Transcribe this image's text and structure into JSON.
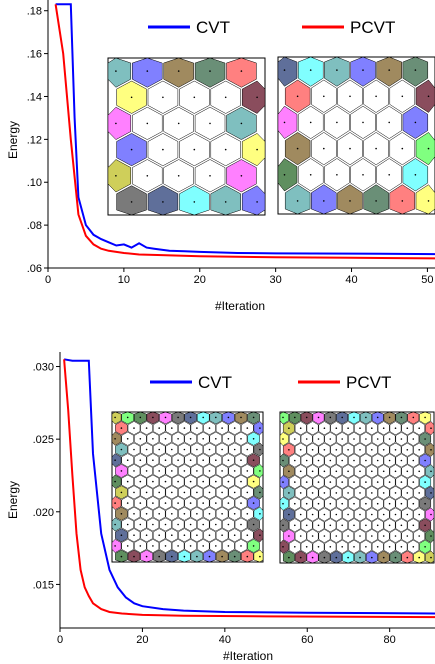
{
  "chart_data": [
    {
      "type": "line",
      "xlabel": "#Iteration",
      "ylabel": "Energy",
      "xlim": [
        0,
        51
      ],
      "ylim": [
        0.06,
        0.185
      ],
      "x_ticks": [
        0,
        10,
        20,
        30,
        40,
        50
      ],
      "y_ticks": [
        0.06,
        0.08,
        0.1,
        0.12,
        0.14,
        0.16,
        0.18
      ],
      "y_tick_labels": [
        ".06",
        ".08",
        ".10",
        ".12",
        ".14",
        ".16",
        ".18"
      ],
      "grid": false,
      "legend_position": "top",
      "series": [
        {
          "name": "CVT",
          "color": "#0000ff",
          "x": [
            1,
            2,
            3,
            3.5,
            4,
            5,
            6,
            7,
            8,
            9,
            10,
            11,
            12,
            13,
            14,
            15,
            16,
            18,
            20,
            25,
            30,
            40,
            51
          ],
          "y": [
            0.183,
            0.183,
            0.183,
            0.13,
            0.093,
            0.08,
            0.0755,
            0.0735,
            0.072,
            0.0705,
            0.071,
            0.0695,
            0.0715,
            0.0695,
            0.069,
            0.0685,
            0.068,
            0.0678,
            0.0675,
            0.067,
            0.0668,
            0.0667,
            0.0665
          ]
        },
        {
          "name": "PCVT",
          "color": "#ff0000",
          "x": [
            1,
            2,
            3,
            4,
            5,
            6,
            7,
            8,
            10,
            12,
            15,
            20,
            30,
            40,
            51
          ],
          "y": [
            0.183,
            0.16,
            0.12,
            0.085,
            0.075,
            0.071,
            0.069,
            0.068,
            0.067,
            0.0663,
            0.066,
            0.0655,
            0.065,
            0.0648,
            0.0645
          ]
        }
      ]
    },
    {
      "type": "line",
      "xlabel": "#Iteration",
      "ylabel": "Energy",
      "xlim": [
        0,
        91
      ],
      "ylim": [
        0.012,
        0.031
      ],
      "x_ticks": [
        0,
        20,
        40,
        60,
        80
      ],
      "y_ticks": [
        0.015,
        0.02,
        0.025,
        0.03
      ],
      "y_tick_labels": [
        ".015",
        ".020",
        ".025",
        ".030"
      ],
      "grid": false,
      "legend_position": "top",
      "series": [
        {
          "name": "CVT",
          "color": "#0000ff",
          "x": [
            1,
            3,
            5,
            7,
            8,
            10,
            12,
            14,
            16,
            18,
            20,
            25,
            30,
            40,
            60,
            91
          ],
          "y": [
            0.0305,
            0.0304,
            0.0304,
            0.0304,
            0.024,
            0.0185,
            0.016,
            0.0148,
            0.0141,
            0.0137,
            0.0135,
            0.0133,
            0.0132,
            0.0131,
            0.01305,
            0.013
          ]
        },
        {
          "name": "PCVT",
          "color": "#ff0000",
          "x": [
            1,
            2,
            3,
            4,
            5,
            6,
            7,
            8,
            10,
            12,
            15,
            20,
            30,
            50,
            91
          ],
          "y": [
            0.0305,
            0.027,
            0.0225,
            0.0185,
            0.016,
            0.0148,
            0.0142,
            0.0137,
            0.0133,
            0.0131,
            0.013,
            0.0129,
            0.01285,
            0.0128,
            0.01275
          ]
        }
      ]
    }
  ],
  "insets": {
    "palette": [
      "#7fbfbf",
      "#6a8f77",
      "#cfcf5a",
      "#8a4d5d",
      "#5f6f9a",
      "#8080ff",
      "#ff8080",
      "#80ff80",
      "#ff80ff",
      "#80ffff",
      "#a08a5f",
      "#ffff80",
      "#5f8f5f",
      "#7a7a7a"
    ]
  }
}
